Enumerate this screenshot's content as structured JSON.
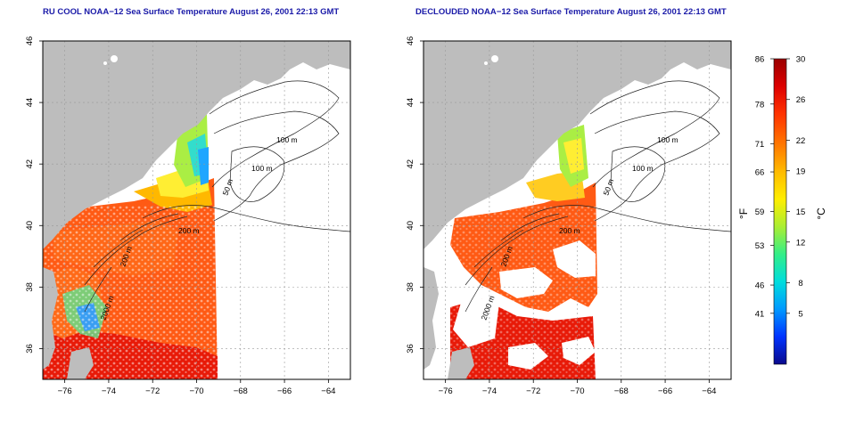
{
  "maps": [
    {
      "title": "RU COOL NOAA−12 Sea Surface Temperature August 26, 2001 22:13 GMT",
      "x_ticks": [
        "−76",
        "−74",
        "−72",
        "−70",
        "−68",
        "−66",
        "−64"
      ],
      "y_ticks": [
        "36",
        "38",
        "40",
        "42",
        "44",
        "46"
      ],
      "contour_labels": [
        "100 m",
        "100 m",
        "50 m",
        "200 m",
        "200 m",
        "2000 m"
      ]
    },
    {
      "title": "DECLOUDED NOAA−12 Sea Surface Temperature August 26, 2001 22:13 GMT",
      "x_ticks": [
        "−76",
        "−74",
        "−72",
        "−70",
        "−68",
        "−66",
        "−64"
      ],
      "y_ticks": [
        "36",
        "38",
        "40",
        "42",
        "44",
        "46"
      ],
      "contour_labels": [
        "100 m",
        "100 m",
        "50 m",
        "200 m",
        "200 m",
        "2000 m"
      ]
    }
  ],
  "colorbar": {
    "fahrenheit_label": "°F",
    "celsius_label": "°C",
    "fahrenheit_ticks": [
      "86",
      "78",
      "71",
      "66",
      "59",
      "53",
      "46",
      "41"
    ],
    "celsius_ticks": [
      "30",
      "26",
      "22",
      "19",
      "15",
      "12",
      "8",
      "5"
    ],
    "colors": [
      "#0a0a8c",
      "#0033ff",
      "#0099ff",
      "#00dddd",
      "#33ee88",
      "#aaee33",
      "#ffee00",
      "#ffbb00",
      "#ff7700",
      "#ff3300",
      "#dd0000",
      "#9a0000"
    ]
  },
  "colors": {
    "land": "#bdbdbd",
    "ocean_no_data": "#ffffff",
    "warm": "#ff5a14",
    "hot": "#e81a08",
    "title": "#1a1aa8"
  }
}
